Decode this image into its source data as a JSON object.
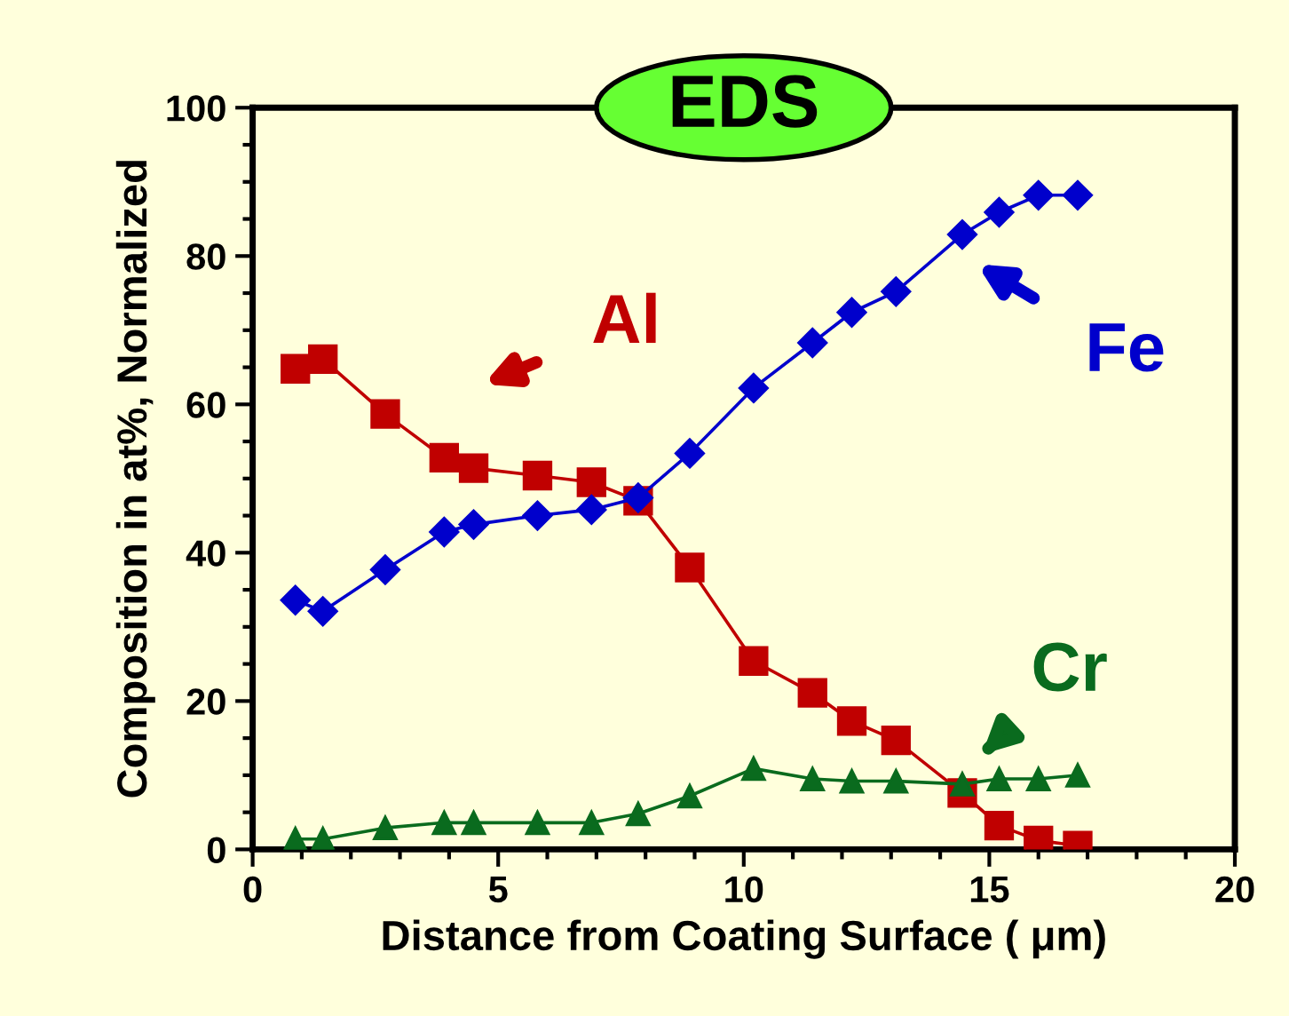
{
  "chart_data": {
    "type": "line",
    "title": "EDS",
    "xlabel": "Distance from Coating Surface ( μm)",
    "ylabel": "Composition in at%, Normalized",
    "x": [
      0.87,
      1.43,
      2.7,
      3.9,
      4.5,
      5.8,
      6.9,
      7.85,
      8.9,
      10.2,
      11.4,
      12.2,
      13.1,
      14.45,
      15.2,
      16.0,
      16.8
    ],
    "series": [
      {
        "name": "Al",
        "color": "#c00000",
        "marker": "square",
        "values": [
          64.8,
          66.1,
          58.7,
          52.8,
          51.4,
          50.4,
          49.5,
          47.0,
          38.0,
          25.4,
          21.1,
          17.3,
          14.7,
          7.6,
          3.2,
          1.2,
          0.5
        ]
      },
      {
        "name": "Fe",
        "color": "#0000cc",
        "marker": "diamond",
        "values": [
          33.6,
          32.1,
          37.7,
          42.8,
          43.8,
          45.0,
          45.8,
          47.4,
          53.4,
          62.2,
          68.3,
          72.4,
          75.2,
          82.9,
          85.9,
          88.2,
          88.2
        ]
      },
      {
        "name": "Cr",
        "color": "#0a6b1e",
        "marker": "triangle",
        "values": [
          1.4,
          1.4,
          2.9,
          3.6,
          3.6,
          3.6,
          3.6,
          4.8,
          7.2,
          10.9,
          9.5,
          9.2,
          9.2,
          8.8,
          9.5,
          9.5,
          10.0
        ]
      }
    ],
    "xlim": [
      0,
      20
    ],
    "xticks": [
      0,
      5,
      10,
      15,
      20
    ],
    "ylim": [
      0,
      100
    ],
    "yticks": [
      0,
      20,
      40,
      60,
      80,
      100
    ],
    "grid": false,
    "legend": false,
    "line_style": "solid"
  }
}
